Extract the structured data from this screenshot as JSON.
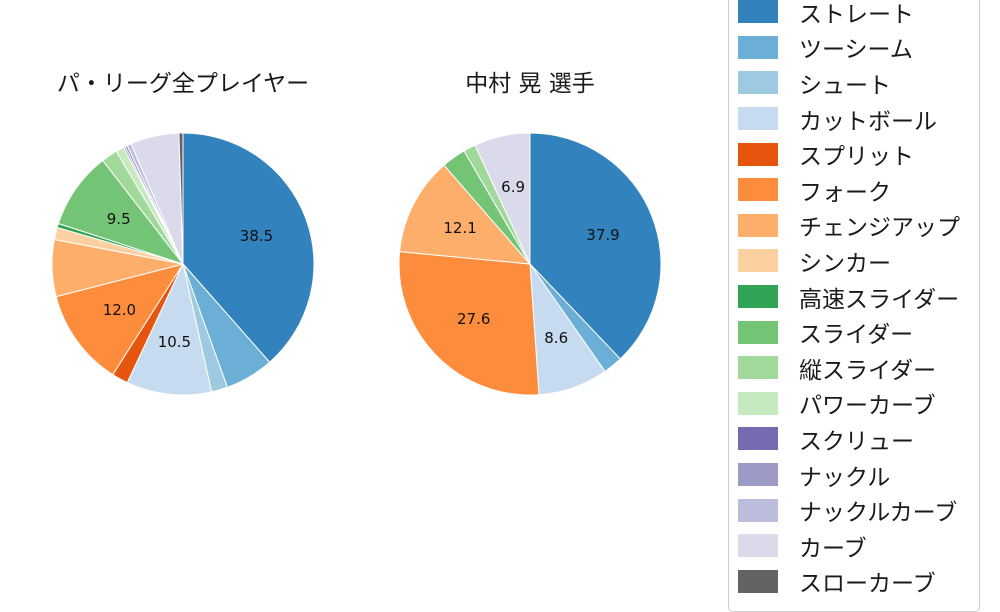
{
  "chart_data": [
    {
      "type": "pie",
      "title": "パ・リーグ全プレイヤー",
      "start_angle": "top",
      "direction": "clockwise",
      "legend_position": "right",
      "categories": [
        "ストレート",
        "ツーシーム",
        "シュート",
        "カットボール",
        "スプリット",
        "フォーク",
        "チェンジアップ",
        "シンカー",
        "高速スライダー",
        "スライダー",
        "縦スライダー",
        "パワーカーブ",
        "スクリュー",
        "ナックル",
        "ナックルカーブ",
        "カーブ",
        "スローカーブ"
      ],
      "values": [
        38.5,
        6.0,
        2.0,
        10.5,
        2.0,
        12.0,
        7.0,
        1.5,
        0.5,
        9.5,
        2.0,
        1.0,
        0.2,
        0.3,
        0.5,
        6.0,
        0.5
      ],
      "slice_labels": [
        "38.5",
        "",
        "",
        "10.5",
        "",
        "12.0",
        "",
        "",
        "",
        "9.5",
        "",
        "",
        "",
        "",
        "",
        "",
        ""
      ]
    },
    {
      "type": "pie",
      "title": "中村 晃 選手",
      "start_angle": "top",
      "direction": "clockwise",
      "legend_position": "right",
      "categories": [
        "ストレート",
        "ツーシーム",
        "シュート",
        "カットボール",
        "スプリット",
        "フォーク",
        "チェンジアップ",
        "シンカー",
        "高速スライダー",
        "スライダー",
        "縦スライダー",
        "パワーカーブ",
        "スクリュー",
        "ナックル",
        "ナックルカーブ",
        "カーブ",
        "スローカーブ"
      ],
      "values": [
        37.9,
        2.4,
        0,
        8.6,
        0,
        27.6,
        12.1,
        0,
        0,
        3.0,
        1.5,
        0,
        0,
        0,
        0,
        6.9,
        0
      ],
      "slice_labels": [
        "37.9",
        "",
        "",
        "8.6",
        "",
        "27.6",
        "12.1",
        "",
        "",
        "",
        "",
        "",
        "",
        "",
        "",
        "6.9",
        ""
      ]
    }
  ],
  "legend": {
    "items": [
      {
        "label": "ストレート",
        "color": "#3182bd"
      },
      {
        "label": "ツーシーム",
        "color": "#6baed6"
      },
      {
        "label": "シュート",
        "color": "#9ecae1"
      },
      {
        "label": "カットボール",
        "color": "#c6dbef"
      },
      {
        "label": "スプリット",
        "color": "#e6550d"
      },
      {
        "label": "フォーク",
        "color": "#fd8d3c"
      },
      {
        "label": "チェンジアップ",
        "color": "#fdae6b"
      },
      {
        "label": "シンカー",
        "color": "#fdd0a2"
      },
      {
        "label": "高速スライダー",
        "color": "#31a354"
      },
      {
        "label": "スライダー",
        "color": "#74c476"
      },
      {
        "label": "縦スライダー",
        "color": "#a1d99b"
      },
      {
        "label": "パワーカーブ",
        "color": "#c7e9c0"
      },
      {
        "label": "スクリュー",
        "color": "#756bb1"
      },
      {
        "label": "ナックル",
        "color": "#9e9ac8"
      },
      {
        "label": "ナックルカーブ",
        "color": "#bcbddc"
      },
      {
        "label": "カーブ",
        "color": "#dadaeb"
      },
      {
        "label": "スローカーブ",
        "color": "#636363"
      }
    ]
  },
  "style": {
    "slice_edge_color": "#ffffff",
    "background": "#ffffff"
  }
}
